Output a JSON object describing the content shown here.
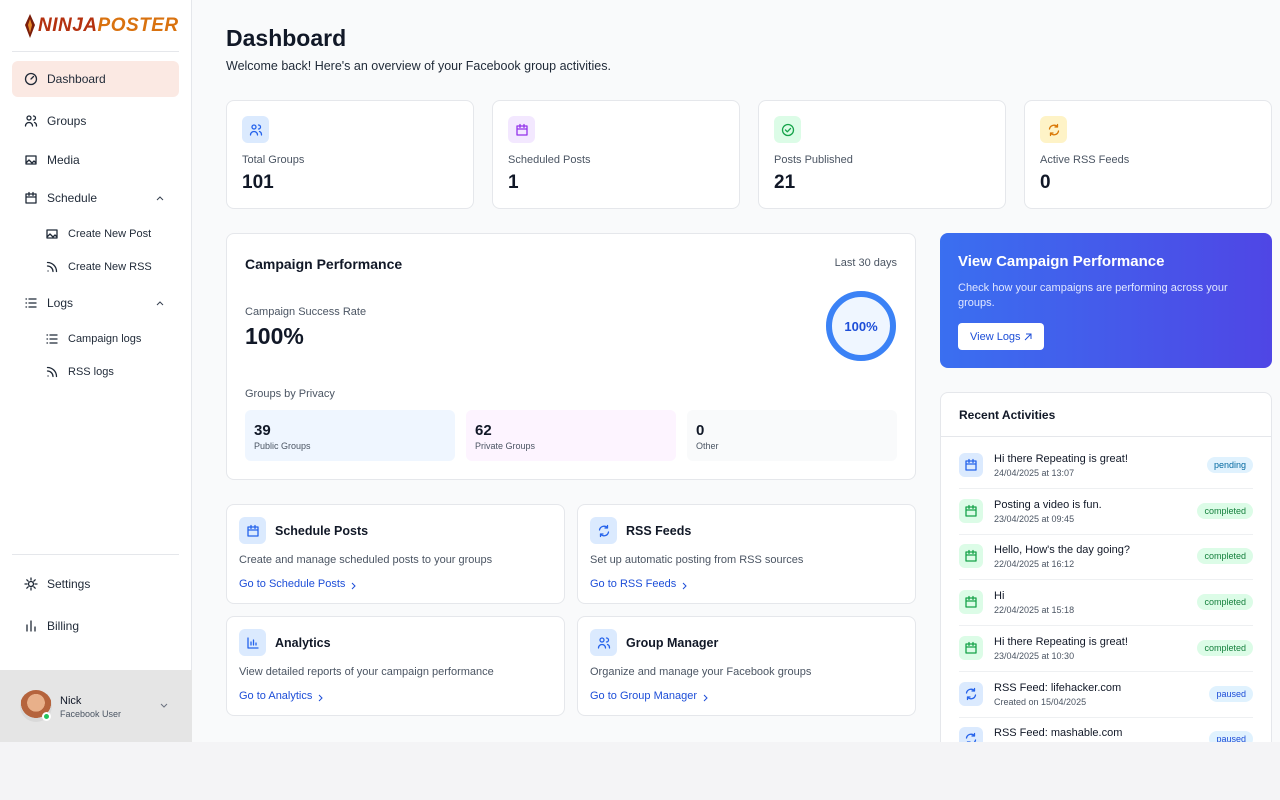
{
  "sidebar": {
    "brand": [
      "NINJA",
      "POSTER"
    ],
    "nav": [
      "Dashboard",
      "Groups",
      "Media",
      "Schedule",
      "Create New Post",
      "Create New RSS",
      "Logs",
      "Campaign logs",
      "RSS logs"
    ],
    "bottom": [
      "Settings",
      "Billing"
    ],
    "user": {
      "name": "Nick",
      "role": "Facebook User"
    }
  },
  "main": {
    "title": "Dashboard",
    "subtitle": "Welcome back! Here's an overview of your Facebook group activities.",
    "stats": [
      {
        "label": "Total Groups",
        "value": 101
      },
      {
        "label": "Scheduled Posts",
        "value": 1
      },
      {
        "label": "Posts Published",
        "value": 21
      },
      {
        "label": "Active RSS Feeds",
        "value": 0
      }
    ],
    "campaign": {
      "title": "Campaign Performance",
      "period": "Last 30 days",
      "rate_title": "Campaign Success Rate",
      "rate": {
        "value": 100,
        "label": "100%"
      },
      "privacy_title": "Groups by Privacy",
      "privacy": [
        {
          "value": 39,
          "label": "Public Groups"
        },
        {
          "value": 62,
          "label": "Private Groups"
        },
        {
          "value": 0,
          "label": "Other"
        }
      ]
    },
    "promo": {
      "title": "View Campaign Performance",
      "text": "Check how your campaigns are performing across your groups.",
      "button": "View Logs"
    },
    "links": [
      {
        "title": "Schedule Posts",
        "text": "Create and manage scheduled posts to your groups",
        "link": "Go to Schedule Posts"
      },
      {
        "title": "RSS Feeds",
        "text": "Set up automatic posting from RSS sources",
        "link": "Go to RSS Feeds"
      },
      {
        "title": "Analytics",
        "text": "View detailed reports of your campaign performance",
        "link": "Go to Analytics"
      },
      {
        "title": "Group Manager",
        "text": "Organize and manage your Facebook groups",
        "link": "Go to Group Manager"
      }
    ],
    "recent": {
      "title": "Recent Activities",
      "items": [
        {
          "title": "Hi there Repeating is great!",
          "date": "24/04/2025 at 13:07",
          "status": "pending"
        },
        {
          "title": "Posting a video is fun.",
          "date": "23/04/2025 at 09:45",
          "status": "completed"
        },
        {
          "title": "Hello, How's the day going?",
          "date": "22/04/2025 at 16:12",
          "status": "completed"
        },
        {
          "title": "Hi",
          "date": "22/04/2025 at 15:18",
          "status": "completed"
        },
        {
          "title": "Hi there Repeating is great!",
          "date": "23/04/2025 at 10:30",
          "status": "completed"
        },
        {
          "title": "RSS Feed: lifehacker.com",
          "date": "Created on 15/04/2025",
          "status": "paused"
        },
        {
          "title": "RSS Feed: mashable.com",
          "status": "paused"
        }
      ]
    }
  }
}
